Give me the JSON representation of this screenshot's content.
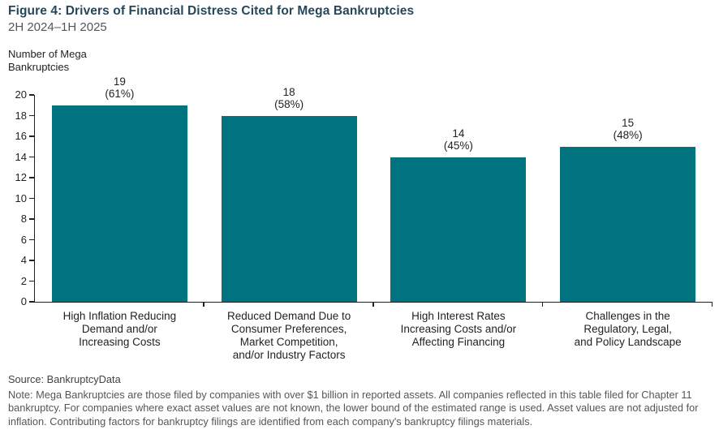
{
  "figure": {
    "title": "Figure 4: Drivers of Financial Distress Cited for Mega Bankruptcies",
    "subtitle": "2H 2024–1H 2025",
    "source": "Source: BankruptcyData",
    "note": "Note: Mega Bankruptcies are those filed by companies with over $1 billion in reported assets. All companies reflected in this table filed for Chapter 11 bankruptcy. For companies where exact asset values are not known, the lower bound of the estimated range is used. Asset values are not adjusted for inflation. Contributing factors for bankruptcy filings are identified from each company's bankruptcy filings materials."
  },
  "chart_data": {
    "type": "bar",
    "title": "Figure 4: Drivers of Financial Distress Cited for Mega Bankruptcies",
    "subtitle": "2H 2024–1H 2025",
    "ylabel": "Number of Mega Bankruptcies",
    "xlabel": "",
    "ylim": [
      0,
      20
    ],
    "ytick_step": 2,
    "grid": false,
    "legend": "none",
    "bar_color": "#00747E",
    "axis_color": "#231F20",
    "categories": [
      "High Inflation Reducing Demand and/or Increasing Costs",
      "Reduced Demand Due to Consumer Preferences, Market Competition, and/or Industry Factors",
      "High Interest Rates Increasing Costs and/or Affecting Financing",
      "Challenges in the Regulatory, Legal, and Policy Landscape"
    ],
    "category_lines": [
      [
        "High Inflation Reducing",
        "Demand and/or",
        "Increasing Costs"
      ],
      [
        "Reduced Demand Due to",
        "Consumer Preferences,",
        "Market Competition,",
        "and/or Industry Factors"
      ],
      [
        "High Interest Rates",
        "Increasing Costs and/or",
        "Affecting Financing"
      ],
      [
        "Challenges in the",
        "Regulatory, Legal,",
        "and Policy Landscape"
      ]
    ],
    "values": [
      19,
      18,
      14,
      15
    ],
    "value_labels": [
      "19",
      "18",
      "14",
      "15"
    ],
    "percent_labels": [
      "(61%)",
      "(58%)",
      "(45%)",
      "(48%)"
    ]
  }
}
